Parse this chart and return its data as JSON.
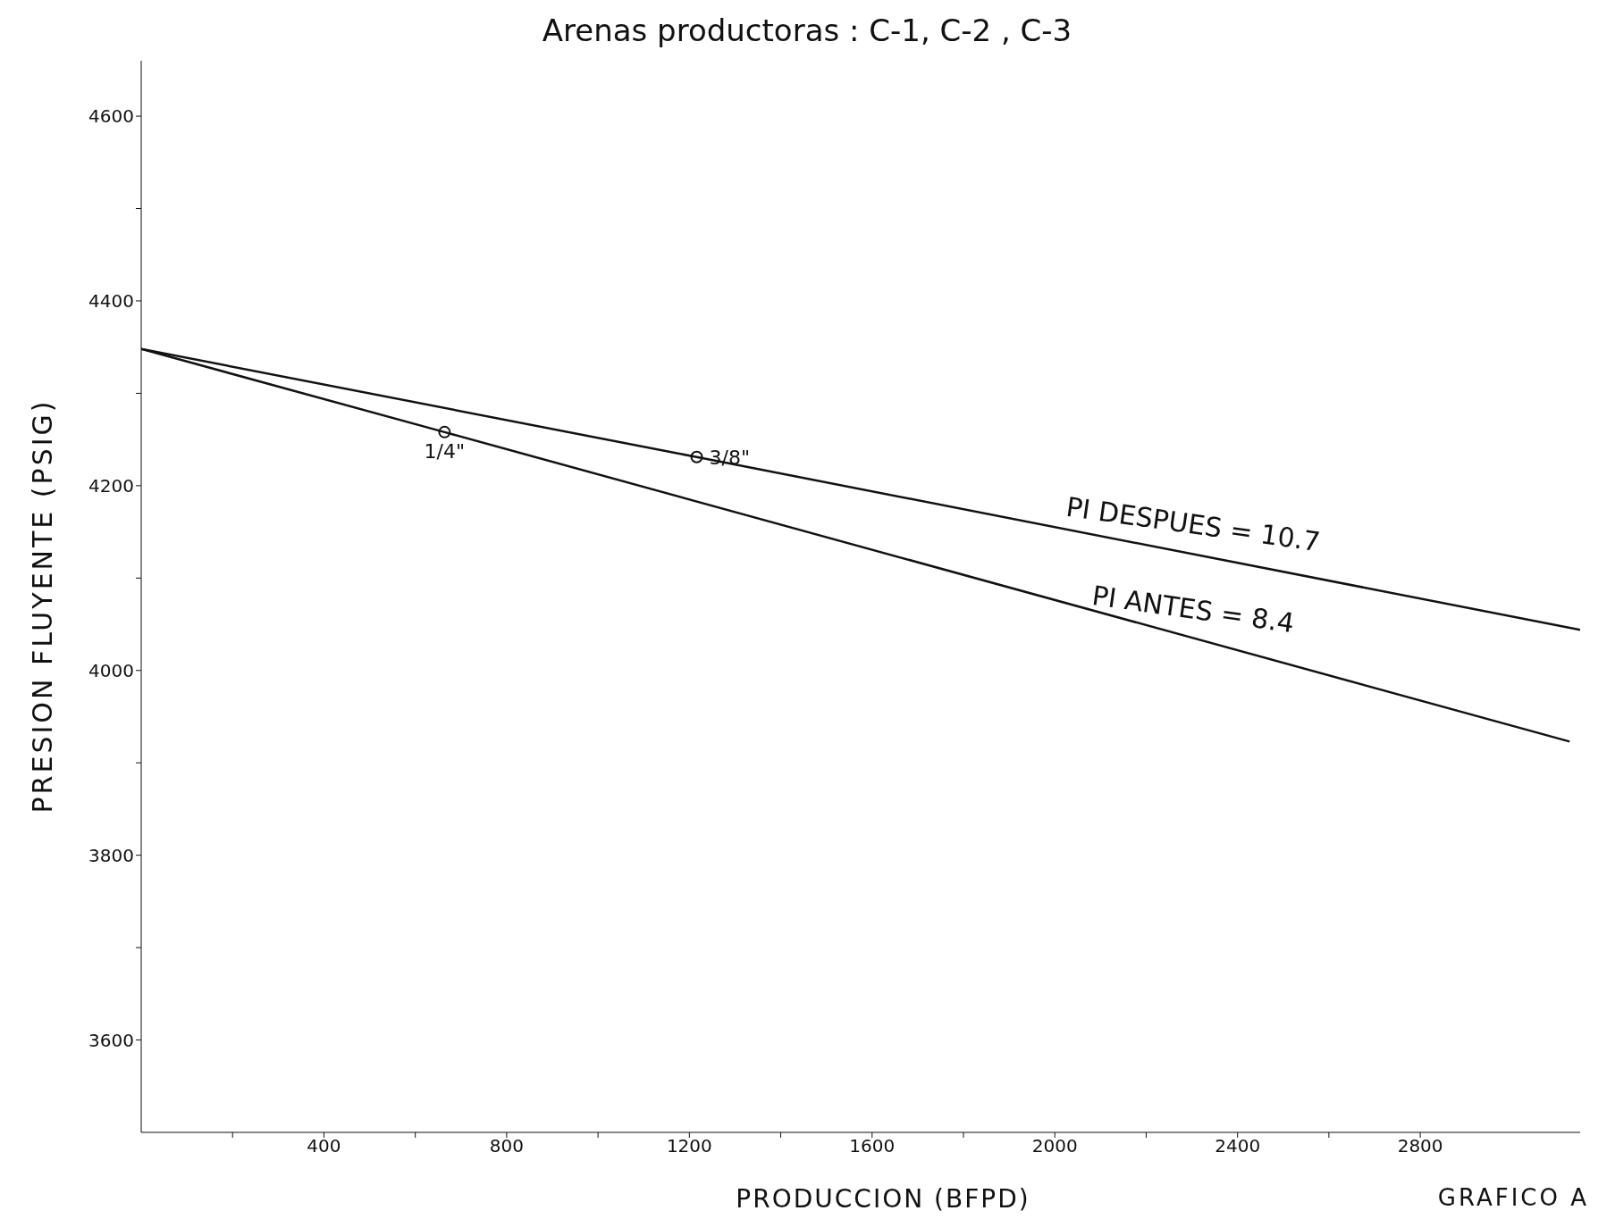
{
  "chart_data": {
    "type": "line",
    "title": "Arenas productoras : C-1, C-2 , C-3",
    "xlabel": "PRODUCCION (BFPD)",
    "ylabel": "PRESION FLUYENTE (PSIG)",
    "xlim": [
      0,
      3150
    ],
    "ylim": [
      3500,
      4660
    ],
    "xticks": [
      {
        "value": 200,
        "label": null
      },
      400,
      {
        "value": 600,
        "label": null
      },
      800,
      {
        "value": 1000,
        "label": null
      },
      1200,
      {
        "value": 1400,
        "label": null
      },
      1600,
      {
        "value": 1800,
        "label": null
      },
      2000,
      {
        "value": 2200,
        "label": null
      },
      2400,
      {
        "value": 2600,
        "label": null
      },
      2800
    ],
    "yticks": [
      3600,
      {
        "value": 3700,
        "label": null
      },
      3800,
      {
        "value": 3900,
        "label": null
      },
      4000,
      {
        "value": 4100,
        "label": null
      },
      4200,
      {
        "value": 4300,
        "label": null
      },
      4400,
      {
        "value": 4500,
        "label": null
      },
      4600
    ],
    "series": [
      {
        "color": "#111111",
        "x": [
          0,
          1216,
          3150
        ],
        "values": [
          4348,
          4231,
          4044
        ],
        "marker": "none"
      },
      {
        "color": "#111111",
        "x": [
          0,
          664,
          3127
        ],
        "values": [
          4348,
          4258,
          3923
        ],
        "marker": "none"
      },
      {
        "type": "scatter",
        "color": "#111111",
        "x": [
          664,
          1216
        ],
        "values": [
          4258,
          4231
        ],
        "marker": "circle"
      }
    ],
    "annotations": [
      {
        "text": "1/4\"",
        "x": 664,
        "y": 4258
      },
      {
        "text": "3/8\"",
        "x": 1216,
        "y": 4231
      },
      {
        "text": "PI DESPUES = 10.7",
        "x": 2300,
        "y": 4127
      },
      {
        "text": "PI ANTES = 8.4",
        "x": 2300,
        "y": 4035
      },
      "GRAFICO A"
    ],
    "grid": false
  }
}
